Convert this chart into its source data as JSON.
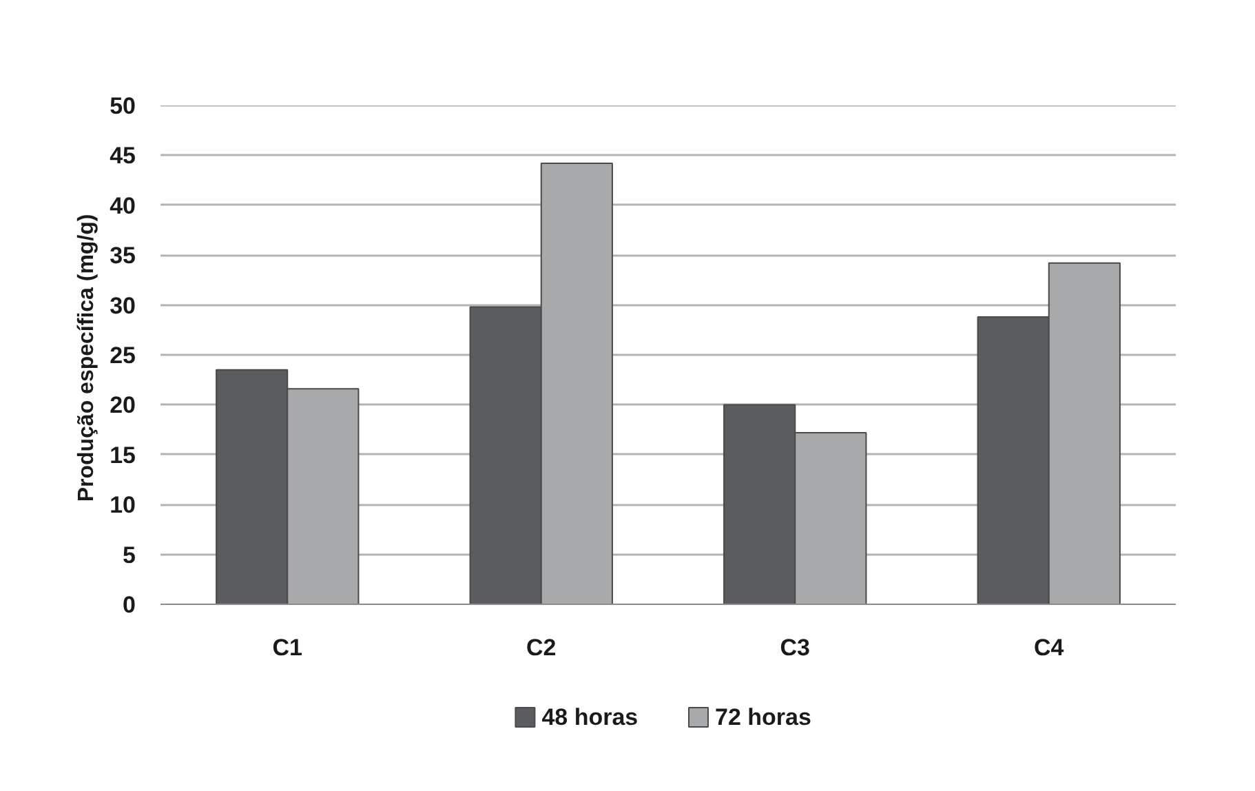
{
  "chart_data": {
    "type": "bar",
    "ylabel": "Produção específica  (mg/g)",
    "categories": [
      "C1",
      "C2",
      "C3",
      "C4"
    ],
    "series": [
      {
        "name": "48 horas",
        "color": "#5b5c5f",
        "values": [
          23.5,
          29.8,
          20.0,
          28.8
        ]
      },
      {
        "name": "72 horas",
        "color": "#a8a9ab",
        "values": [
          21.6,
          44.2,
          17.2,
          34.2
        ]
      }
    ],
    "ylim": [
      0,
      50
    ],
    "yticks": [
      0,
      5,
      10,
      15,
      20,
      25,
      30,
      35,
      40,
      45,
      50
    ],
    "grid": "y",
    "legend": "bottom"
  }
}
